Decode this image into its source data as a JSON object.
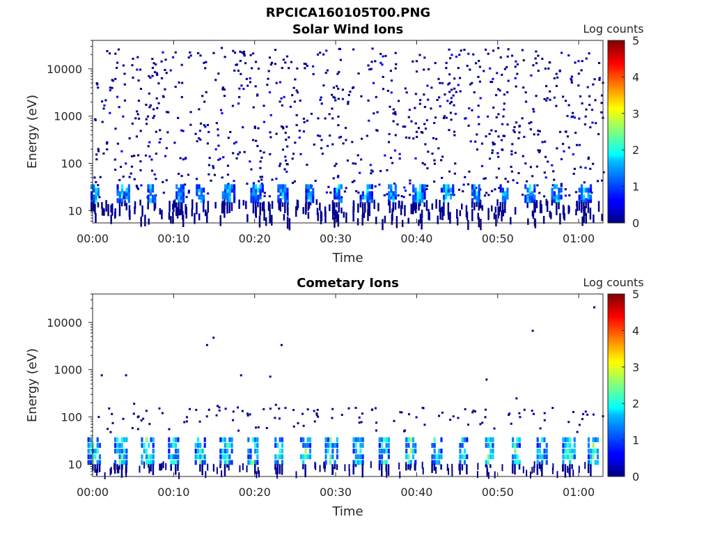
{
  "figure_title": "RPCICA160105T00.PNG",
  "colors": {
    "colormap": "jet",
    "axis": "#262626",
    "background": "#ffffff"
  },
  "chart_data": [
    {
      "type": "heatmap",
      "title": "Solar Wind Ions",
      "xlabel": "Time",
      "ylabel": "Energy (eV)",
      "x_tick_labels": [
        "00:00",
        "00:10",
        "00:20",
        "00:30",
        "00:40",
        "00:50",
        "01:00"
      ],
      "x_ticks_min": [
        0,
        10,
        20,
        30,
        40,
        50,
        60
      ],
      "xlim_min": [
        0,
        63
      ],
      "y_scale": "log",
      "y_tick_labels": [
        "10",
        "100",
        "1000",
        "10000"
      ],
      "y_ticks": [
        10,
        100,
        1000,
        10000
      ],
      "ylim": [
        5.5,
        40000
      ],
      "colorbar": {
        "label": "Log counts",
        "ticks": [
          "0",
          "1",
          "2",
          "3",
          "4",
          "5"
        ],
        "range": [
          0,
          5
        ]
      },
      "description_of_data": "Sparse background counts (~0-1 log counts) scattered from ~10 eV to ~30000 eV; recurring bursts of 1-2.5 log counts between ~10-35 eV roughly every 3.3 minutes.",
      "burst_times_min": [
        0.3,
        3.8,
        7.3,
        10.8,
        13.3,
        16.8,
        20.3,
        23.5,
        26.8,
        30.3,
        33.8,
        37.0,
        40.3,
        43.8,
        47.3,
        50.8,
        54.0,
        57.3,
        60.8
      ],
      "burst_energy_range_eV": [
        15,
        35
      ],
      "burst_peak_log_counts": 2.2
    },
    {
      "type": "heatmap",
      "title": "Cometary Ions",
      "xlabel": "Time",
      "ylabel": "Energy (eV)",
      "x_tick_labels": [
        "00:00",
        "00:10",
        "00:20",
        "00:30",
        "00:40",
        "00:50",
        "01:00"
      ],
      "x_ticks_min": [
        0,
        10,
        20,
        30,
        40,
        50,
        60
      ],
      "xlim_min": [
        0,
        63
      ],
      "y_scale": "log",
      "y_tick_labels": [
        "10",
        "100",
        "1000",
        "10000"
      ],
      "y_ticks": [
        10,
        100,
        1000,
        10000
      ],
      "ylim": [
        5.5,
        40000
      ],
      "colorbar": {
        "label": "Log counts",
        "ticks": [
          "0",
          "1",
          "2",
          "3",
          "4",
          "5"
        ],
        "range": [
          0,
          5
        ]
      },
      "description_of_data": "Regular bursts of 1-3 log counts between ~10-40 eV roughly every 3.3 minutes; very sparse isolated counts up to ~20000 eV.",
      "burst_times_min": [
        0.2,
        3.5,
        6.8,
        10.0,
        13.3,
        16.5,
        19.8,
        23.0,
        26.3,
        29.5,
        32.8,
        36.0,
        39.3,
        42.5,
        45.8,
        49.0,
        52.3,
        55.5,
        58.8,
        61.8
      ],
      "burst_energy_range_eV": [
        10,
        40
      ],
      "burst_peak_log_counts": 2.8,
      "isolated_points": [
        {
          "t": 1.0,
          "e": 800
        },
        {
          "t": 4.0,
          "e": 800
        },
        {
          "t": 14.0,
          "e": 3500
        },
        {
          "t": 14.8,
          "e": 5000
        },
        {
          "t": 18.2,
          "e": 800
        },
        {
          "t": 21.8,
          "e": 750
        },
        {
          "t": 23.2,
          "e": 3500
        },
        {
          "t": 48.5,
          "e": 650
        },
        {
          "t": 52.2,
          "e": 260
        },
        {
          "t": 54.2,
          "e": 7000
        },
        {
          "t": 61.8,
          "e": 22000
        },
        {
          "t": 5.0,
          "e": 200
        },
        {
          "t": 15.3,
          "e": 180
        },
        {
          "t": 22.5,
          "e": 190
        },
        {
          "t": 31.5,
          "e": 160
        }
      ]
    }
  ]
}
